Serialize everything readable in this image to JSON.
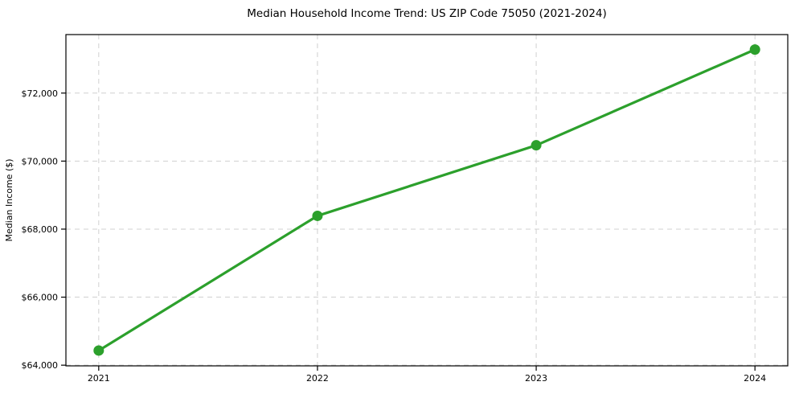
{
  "chart_data": {
    "type": "line",
    "title": "Median Household Income Trend: US ZIP Code 75050 (2021-2024)",
    "xlabel": "",
    "ylabel": "Median Income ($)",
    "series": [
      {
        "name": "Median Household Income",
        "x": [
          2021,
          2022,
          2023,
          2024
        ],
        "values": [
          64430,
          68390,
          70465,
          73280
        ]
      }
    ],
    "xtick_values": [
      2021,
      2022,
      2023,
      2024
    ],
    "xtick_labels": [
      "2021",
      "2022",
      "2023",
      "2024"
    ],
    "ytick_values": [
      64000,
      66000,
      68000,
      70000,
      72000
    ],
    "ytick_labels": [
      "$64,000",
      "$66,000",
      "$68,000",
      "$70,000",
      "$72,000"
    ],
    "xlim": [
      2020.85,
      2024.15
    ],
    "ylim": [
      63980,
      73720
    ],
    "grid": true,
    "grid_style": "dashed",
    "legend": false,
    "colors": {
      "line": "#2ca02c",
      "marker": "#2ca02c",
      "grid": "#d0d0d0",
      "spine": "#000000",
      "background": "#ffffff",
      "text": "#000000"
    }
  }
}
